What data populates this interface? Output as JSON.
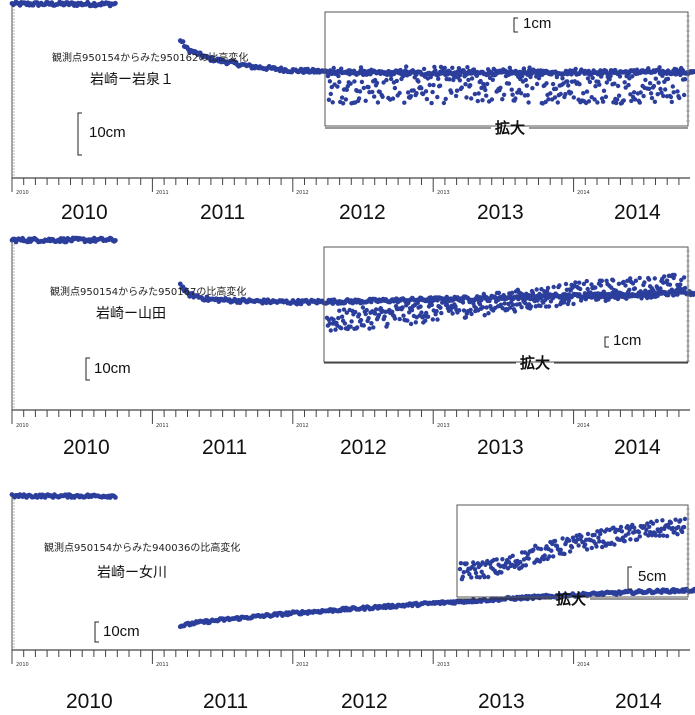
{
  "chart_data": [
    {
      "type": "scatter",
      "subtitle": "観測点950154からみた950162の比高変化",
      "title": "岩崎ー岩泉１",
      "scale_label": "10cm",
      "inset_scale_label": "1cm",
      "inset_label": "拡大",
      "years": [
        "2010",
        "2011",
        "2012",
        "2013",
        "2014"
      ],
      "tick_year_labels": [
        "2010",
        "2011",
        "2012",
        "2013",
        "2014"
      ],
      "xlim": [
        2010.0,
        2014.9
      ],
      "marker_color": "#2b3e9c",
      "series": [
        {
          "values": [
            [
              2010.0,
              3.1
            ],
            [
              2011.19,
              3.1
            ],
            [
              2011.19,
              -4.5
            ],
            [
              2011.25,
              -7.0
            ],
            [
              2011.4,
              -9.0
            ],
            [
              2011.7,
              -10.8
            ],
            [
              2012.0,
              -11.7
            ],
            [
              2012.5,
              -12.2
            ],
            [
              2013.0,
              -12.3
            ],
            [
              2013.5,
              -12.2
            ],
            [
              2014.0,
              -12.1
            ],
            [
              2014.5,
              -12.0
            ],
            [
              2014.9,
              -12.1
            ]
          ]
        }
      ],
      "inset": {
        "xlim": [
          2011.8,
          2014.9
        ],
        "values": [
          [
            2011.8,
            0.0
          ],
          [
            2012.5,
            0.0
          ],
          [
            2013.2,
            0.0
          ],
          [
            2014.0,
            0.0
          ],
          [
            2014.9,
            0.0
          ]
        ],
        "spread": 0.6
      }
    },
    {
      "type": "scatter",
      "subtitle": "観測点950154からみた950167の比高変化",
      "title": "岩崎ー山田",
      "scale_label": "10cm",
      "inset_scale_label": "1cm",
      "inset_label": "拡大",
      "years": [
        "2010",
        "2011",
        "2012",
        "2013",
        "2014"
      ],
      "tick_year_labels": [
        "2010",
        "2011",
        "2012",
        "2013",
        "2014"
      ],
      "xlim": [
        2010.0,
        2014.9
      ],
      "marker_color": "#2b3e9c",
      "series": [
        {
          "values": [
            [
              2010.0,
              3.0
            ],
            [
              2011.19,
              3.0
            ],
            [
              2011.19,
              -6.5
            ],
            [
              2011.25,
              -9.0
            ],
            [
              2011.4,
              -10.2
            ],
            [
              2011.7,
              -10.6
            ],
            [
              2012.0,
              -10.8
            ],
            [
              2012.5,
              -10.6
            ],
            [
              2013.0,
              -10.2
            ],
            [
              2013.5,
              -9.8
            ],
            [
              2014.0,
              -9.4
            ],
            [
              2014.5,
              -9.0
            ],
            [
              2014.9,
              -8.8
            ]
          ]
        }
      ],
      "inset": {
        "xlim": [
          2011.8,
          2014.9
        ],
        "values": [
          [
            2011.8,
            0.0
          ],
          [
            2012.5,
            0.9
          ],
          [
            2013.2,
            2.0
          ],
          [
            2014.0,
            3.3
          ],
          [
            2014.9,
            4.2
          ]
        ],
        "spread": 0.55
      }
    },
    {
      "type": "scatter",
      "subtitle": "観測点950154からみた940036の比高変化",
      "title": "岩崎ー女川",
      "scale_label": "10cm",
      "inset_scale_label": "5cm",
      "inset_label": "拡大",
      "years": [
        "2010",
        "2011",
        "2012",
        "2013",
        "2014"
      ],
      "tick_year_labels": [
        "2010",
        "2011",
        "2012",
        "2013",
        "2014"
      ],
      "xlim": [
        2010.0,
        2014.9
      ],
      "marker_color": "#2b3e9c",
      "series": [
        {
          "values": [
            [
              2010.0,
              4.0
            ],
            [
              2011.19,
              4.0
            ],
            [
              2011.19,
              -35.5
            ],
            [
              2011.3,
              -34.5
            ],
            [
              2011.5,
              -33.5
            ],
            [
              2012.0,
              -31.5
            ],
            [
              2012.5,
              -30.0
            ],
            [
              2013.0,
              -28.5
            ],
            [
              2013.5,
              -27.2
            ],
            [
              2014.0,
              -26.0
            ],
            [
              2014.5,
              -25.0
            ],
            [
              2014.9,
              -24.5
            ]
          ]
        }
      ],
      "inset": {
        "xlim": [
          2012.8,
          2014.9
        ],
        "values": [
          [
            2012.8,
            0.0
          ],
          [
            2013.2,
            0.6
          ],
          [
            2013.5,
            2.0
          ],
          [
            2013.8,
            3.0
          ],
          [
            2014.2,
            4.0
          ],
          [
            2014.6,
            4.8
          ],
          [
            2014.9,
            5.1
          ]
        ],
        "spread": 0.45
      }
    }
  ]
}
